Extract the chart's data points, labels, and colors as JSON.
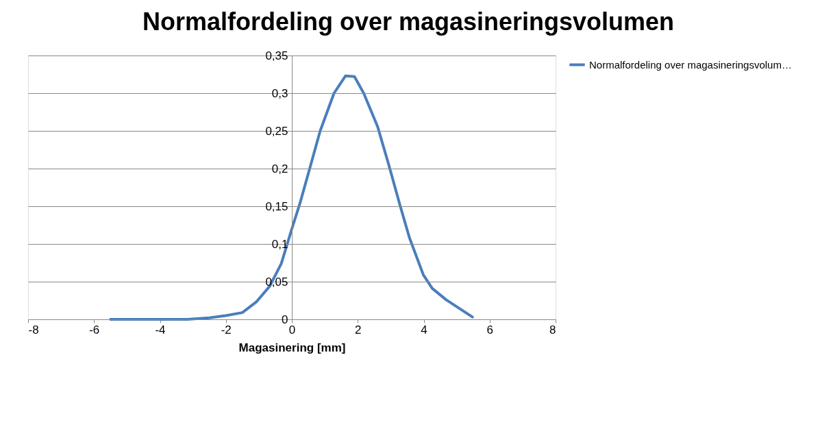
{
  "chart_data": {
    "type": "line",
    "title": "Normalfordeling over magasineringsvolumen",
    "xlabel": "Magasinering [mm]",
    "x": [
      -5.5,
      -4.5,
      -3.5,
      -3.17,
      -2.5,
      -2,
      -1.5,
      -1.08,
      -0.67,
      -0.32,
      0,
      0.24,
      0.51,
      0.86,
      1.28,
      1.63,
      1.9,
      2.18,
      2.6,
      2.94,
      3.29,
      3.57,
      3.99,
      4.26,
      4.68,
      5.48
    ],
    "series": [
      {
        "name": "Normalfordeling over magasineringsvolum…",
        "color": "#4a7ebb",
        "values": [
          0,
          0,
          0,
          0,
          0.002,
          0.005,
          0.009,
          0.023,
          0.044,
          0.074,
          0.12,
          0.153,
          0.195,
          0.25,
          0.3,
          0.323,
          0.322,
          0.3,
          0.256,
          0.205,
          0.15,
          0.108,
          0.059,
          0.041,
          0.026,
          0.003
        ]
      }
    ],
    "xlim": [
      -8,
      8
    ],
    "xticks": [
      -8,
      -6,
      -4,
      -2,
      0,
      2,
      4,
      6,
      8
    ],
    "ylim": [
      0,
      0.35
    ],
    "yticks": [
      {
        "value": 0,
        "label": "0"
      },
      {
        "value": 0.05,
        "label": "0,05"
      },
      {
        "value": 0.1,
        "label": "0,1"
      },
      {
        "value": 0.15,
        "label": "0,15"
      },
      {
        "value": 0.2,
        "label": "0,2"
      },
      {
        "value": 0.25,
        "label": "0,25"
      },
      {
        "value": 0.3,
        "label": "0,3"
      },
      {
        "value": 0.35,
        "label": "0,35"
      }
    ],
    "grid": "y",
    "legend": "right",
    "marker": "none",
    "line_style": "solid"
  }
}
